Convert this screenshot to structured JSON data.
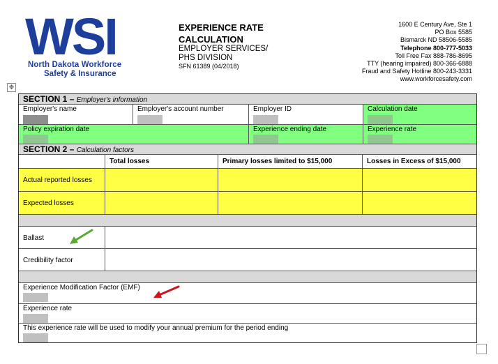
{
  "logo": {
    "wordmark": "WSI",
    "line1": "North Dakota Workforce",
    "line2": "Safety & Insurance",
    "color": "#1d3f9b"
  },
  "header": {
    "title_line1": "EXPERIENCE RATE",
    "title_line2": "CALCULATION",
    "sub_line1": "EMPLOYER SERVICES/",
    "sub_line2": "PHS DIVISION",
    "form_number": "SFN 61389 (04/2018)"
  },
  "address": {
    "line1": "1600 E Century Ave, Ste 1",
    "line2": "PO Box 5585",
    "line3": "Bismarck ND 58506-5585",
    "line4": "Telephone 800-777-5033",
    "line5": "Toll Free Fax 888-786-8695",
    "line6": "TTY (hearing impaired) 800-366-6888",
    "line7": "Fraud and Safety Hotline 800-243-3331",
    "line8": "www.workforcesafety.com"
  },
  "section1": {
    "label": "SECTION 1",
    "dash": " – ",
    "caption": "Employer's information",
    "employer_name": "Employer's name",
    "account_number": "Employer's account number",
    "employer_id": "Employer ID",
    "calculation_date": "Calculation date",
    "policy_expiration": "Policy expiration date",
    "experience_ending": "Experience ending date",
    "experience_rate": "Experience rate"
  },
  "section2": {
    "label": "SECTION 2",
    "dash": " – ",
    "caption": "Calculation factors",
    "col_total": "Total losses",
    "col_primary": "Primary losses limited to $15,000",
    "col_excess": "Losses in Excess of $15,000",
    "row_actual": "Actual reported losses",
    "row_expected": "Expected losses",
    "ballast": "Ballast",
    "credibility": "Credibility factor",
    "emf": "Experience Modification Factor (EMF)",
    "experience_rate": "Experience rate",
    "note": "This experience rate will be used to modify your annual premium for the period ending"
  },
  "colors": {
    "green_fill": "#80ff80",
    "yellow_fill": "#ffff44",
    "section_grey": "#d9d9d9",
    "arrow_green": "#5aa832",
    "arrow_red": "#c8181e"
  }
}
